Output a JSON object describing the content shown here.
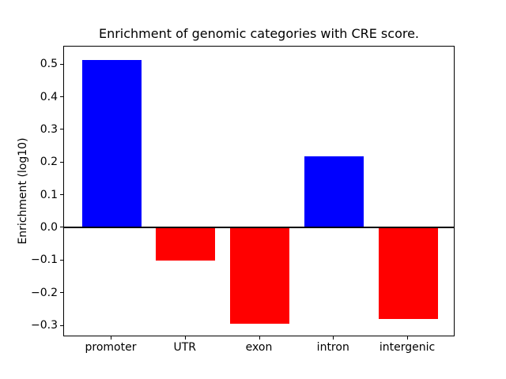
{
  "chart_data": {
    "type": "bar",
    "title": "Enrichment of genomic categories with CRE score.",
    "xlabel": "",
    "ylabel": "Enrichment (log10)",
    "categories": [
      "promoter",
      "UTR",
      "exon",
      "intron",
      "intergenic"
    ],
    "values": [
      0.515,
      -0.1,
      -0.295,
      0.22,
      -0.28
    ],
    "bar_colors": [
      "#0000ff",
      "#ff0000",
      "#ff0000",
      "#0000ff",
      "#ff0000"
    ],
    "positive_color": "#0000ff",
    "negative_color": "#ff0000",
    "x_positions": [
      0,
      1,
      2,
      3,
      4
    ],
    "xlim": [
      -0.64,
      4.64
    ],
    "ylim": [
      -0.335,
      0.555
    ],
    "yticks": [
      0.5,
      0.4,
      0.3,
      0.2,
      0.1,
      0.0,
      -0.1,
      -0.2,
      -0.3
    ],
    "ytick_labels": [
      "0.5",
      "0.4",
      "0.3",
      "0.2",
      "0.1",
      "0.0",
      "−0.1",
      "−0.2",
      "−0.3"
    ],
    "bar_width_fraction": 0.8,
    "zero_line": true,
    "grid": false,
    "legend_position": "none",
    "axis_color": "#000000",
    "background_color": "#ffffff"
  }
}
